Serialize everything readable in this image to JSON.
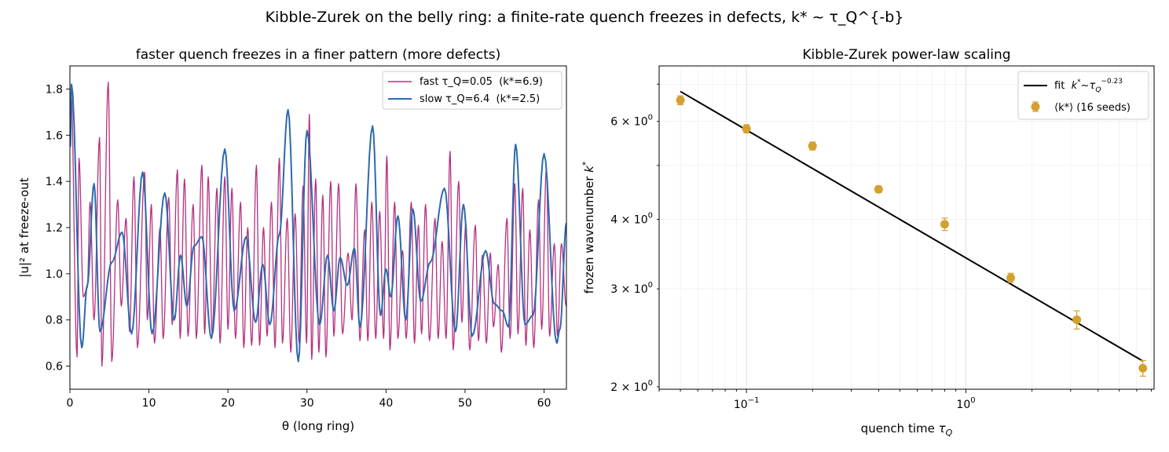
{
  "figure": {
    "suptitle": "Kibble-Zurek on the belly ring: a finite-rate quench freezes in defects, k* ~ τ_Q^{-b}"
  },
  "chart_data": [
    {
      "type": "line",
      "title": "faster quench freezes in a finer pattern (more defects)",
      "xlabel": "θ (long ring)",
      "ylabel": "|u|² at freeze-out",
      "xlim": [
        0,
        62.83
      ],
      "ylim": [
        0.5,
        1.9
      ],
      "xticks": [
        "0",
        "10",
        "20",
        "30",
        "40",
        "50",
        "60"
      ],
      "yticks": [
        "0.6",
        "0.8",
        "1.0",
        "1.2",
        "1.4",
        "1.6",
        "1.8"
      ],
      "legend": "upper right",
      "grid": false,
      "series": [
        {
          "name": "fast τ_Q=0.05  (k*=6.9)",
          "color": "#b5307f",
          "wavenumber": 6.9,
          "peaks": [
            [
              0.15,
              1.78
            ],
            [
              0.9,
              0.64
            ],
            [
              1.15,
              1.5
            ],
            [
              1.7,
              0.9
            ],
            [
              2.2,
              0.94
            ],
            [
              2.55,
              1.31
            ],
            [
              3.05,
              0.8
            ],
            [
              3.75,
              1.59
            ],
            [
              4.05,
              0.6
            ],
            [
              4.85,
              1.83
            ],
            [
              5.3,
              0.62
            ],
            [
              6.05,
              1.32
            ],
            [
              6.5,
              0.86
            ],
            [
              7.1,
              1.24
            ],
            [
              7.55,
              0.75
            ],
            [
              8.1,
              1.42
            ],
            [
              8.55,
              0.68
            ],
            [
              9.45,
              1.44
            ],
            [
              9.8,
              0.8
            ],
            [
              10.3,
              1.3
            ],
            [
              10.7,
              0.7
            ],
            [
              11.4,
              1.2
            ],
            [
              11.8,
              0.72
            ],
            [
              12.5,
              1.33
            ],
            [
              12.95,
              0.78
            ],
            [
              13.6,
              1.45
            ],
            [
              13.95,
              0.72
            ],
            [
              14.5,
              1.41
            ],
            [
              14.95,
              0.73
            ],
            [
              15.6,
              1.3
            ],
            [
              16.0,
              0.72
            ],
            [
              16.7,
              1.47
            ],
            [
              17.05,
              0.74
            ],
            [
              17.5,
              1.42
            ],
            [
              18.0,
              0.74
            ],
            [
              18.6,
              1.37
            ],
            [
              19.0,
              0.7
            ],
            [
              19.6,
              1.42
            ],
            [
              20.0,
              0.76
            ],
            [
              20.5,
              1.37
            ],
            [
              20.95,
              0.72
            ],
            [
              21.6,
              1.31
            ],
            [
              22.0,
              0.68
            ],
            [
              22.5,
              1.2
            ],
            [
              23.0,
              0.69
            ],
            [
              23.6,
              1.47
            ],
            [
              24.0,
              0.69
            ],
            [
              24.5,
              1.2
            ],
            [
              24.95,
              0.73
            ],
            [
              25.5,
              1.31
            ],
            [
              25.95,
              0.68
            ],
            [
              26.5,
              1.5
            ],
            [
              26.9,
              0.7
            ],
            [
              27.5,
              1.24
            ],
            [
              27.95,
              0.66
            ],
            [
              28.5,
              1.26
            ],
            [
              29.0,
              0.7
            ],
            [
              29.5,
              1.38
            ],
            [
              29.95,
              0.7
            ],
            [
              30.3,
              1.69
            ],
            [
              30.6,
              0.63
            ],
            [
              31.1,
              1.41
            ],
            [
              31.5,
              0.66
            ],
            [
              32.0,
              1.34
            ],
            [
              32.4,
              0.64
            ],
            [
              33.0,
              1.4
            ],
            [
              33.4,
              0.73
            ],
            [
              34.0,
              1.39
            ],
            [
              34.5,
              0.74
            ],
            [
              35.2,
              1.09
            ],
            [
              35.7,
              0.8
            ],
            [
              36.2,
              1.39
            ],
            [
              36.7,
              0.71
            ],
            [
              37.3,
              1.19
            ],
            [
              37.7,
              0.71
            ],
            [
              38.2,
              1.31
            ],
            [
              38.7,
              0.72
            ],
            [
              39.2,
              1.27
            ],
            [
              39.7,
              0.72
            ],
            [
              40.1,
              1.51
            ],
            [
              40.5,
              0.67
            ],
            [
              41.1,
              1.31
            ],
            [
              41.5,
              0.72
            ],
            [
              42.1,
              1.1
            ],
            [
              42.55,
              0.72
            ],
            [
              43.2,
              1.31
            ],
            [
              43.6,
              0.7
            ],
            [
              44.1,
              1.21
            ],
            [
              44.5,
              0.74
            ],
            [
              45.0,
              1.3
            ],
            [
              45.5,
              0.71
            ],
            [
              46.2,
              1.24
            ],
            [
              46.6,
              0.72
            ],
            [
              47.1,
              1.14
            ],
            [
              47.6,
              0.72
            ],
            [
              48.1,
              1.53
            ],
            [
              48.5,
              0.67
            ],
            [
              49.2,
              1.4
            ],
            [
              49.6,
              0.79
            ],
            [
              50.1,
              1.22
            ],
            [
              50.6,
              0.67
            ],
            [
              51.3,
              1.21
            ],
            [
              51.7,
              0.71
            ],
            [
              52.2,
              1.08
            ],
            [
              52.7,
              0.7
            ],
            [
              53.2,
              1.09
            ],
            [
              53.6,
              0.77
            ],
            [
              54.2,
              1.04
            ],
            [
              54.6,
              0.66
            ],
            [
              55.3,
              1.24
            ],
            [
              55.7,
              0.72
            ],
            [
              56.3,
              1.39
            ],
            [
              56.7,
              0.74
            ],
            [
              57.3,
              1.37
            ],
            [
              57.7,
              0.69
            ],
            [
              58.2,
              1.19
            ],
            [
              58.7,
              0.68
            ],
            [
              59.3,
              1.32
            ],
            [
              59.7,
              0.76
            ],
            [
              60.3,
              1.46
            ],
            [
              60.7,
              0.73
            ],
            [
              61.3,
              1.13
            ],
            [
              61.7,
              0.73
            ],
            [
              62.2,
              1.13
            ],
            [
              62.8,
              0.86
            ]
          ]
        },
        {
          "name": "slow τ_Q=6.4  (k*=2.5)",
          "color": "#2d6aad",
          "wavenumber": 2.5,
          "peaks": [
            [
              0.05,
              1.55
            ],
            [
              0.2,
              1.82
            ],
            [
              1.5,
              0.68
            ],
            [
              2.2,
              0.95
            ],
            [
              3.05,
              1.39
            ],
            [
              3.8,
              0.75
            ],
            [
              5.3,
              1.05
            ],
            [
              6.6,
              1.18
            ],
            [
              7.8,
              0.74
            ],
            [
              9.2,
              1.44
            ],
            [
              10.4,
              0.74
            ],
            [
              12.0,
              1.35
            ],
            [
              13.2,
              0.8
            ],
            [
              14.0,
              1.08
            ],
            [
              14.8,
              0.86
            ],
            [
              15.7,
              1.12
            ],
            [
              16.7,
              1.16
            ],
            [
              17.9,
              0.72
            ],
            [
              19.6,
              1.54
            ],
            [
              20.8,
              0.84
            ],
            [
              22.3,
              1.16
            ],
            [
              23.5,
              0.79
            ],
            [
              24.4,
              1.04
            ],
            [
              25.3,
              0.78
            ],
            [
              26.5,
              1.17
            ],
            [
              27.6,
              1.71
            ],
            [
              28.9,
              0.62
            ],
            [
              30.0,
              1.62
            ],
            [
              31.6,
              0.78
            ],
            [
              32.6,
              1.08
            ],
            [
              33.4,
              0.84
            ],
            [
              34.2,
              1.07
            ],
            [
              35.1,
              0.95
            ],
            [
              36.0,
              1.11
            ],
            [
              36.7,
              0.77
            ],
            [
              38.3,
              1.64
            ],
            [
              39.3,
              0.82
            ],
            [
              40.0,
              1.02
            ],
            [
              40.6,
              0.9
            ],
            [
              41.5,
              1.25
            ],
            [
              42.5,
              0.8
            ],
            [
              43.4,
              1.28
            ],
            [
              44.4,
              0.88
            ],
            [
              45.6,
              1.05
            ],
            [
              47.4,
              1.37
            ],
            [
              48.8,
              0.75
            ],
            [
              49.8,
              1.3
            ],
            [
              50.9,
              0.73
            ],
            [
              52.6,
              1.1
            ],
            [
              53.7,
              0.87
            ],
            [
              54.7,
              0.84
            ],
            [
              55.5,
              0.77
            ],
            [
              56.4,
              1.56
            ],
            [
              57.6,
              0.78
            ],
            [
              58.6,
              0.82
            ],
            [
              60.0,
              1.52
            ],
            [
              61.6,
              0.7
            ],
            [
              62.0,
              0.76
            ],
            [
              62.83,
              1.22
            ]
          ]
        }
      ]
    },
    {
      "type": "scatter",
      "title": "Kibble-Zurek power-law scaling",
      "xlabel": "quench time  τ_Q",
      "ylabel": "frozen wavenumber  k*",
      "xscale": "log",
      "yscale": "log",
      "xlim": [
        0.04,
        7.2
      ],
      "ylim": [
        1.98,
        7.55
      ],
      "xticks": [
        {
          "value": 0.1,
          "base": "10",
          "exp": "−1"
        },
        {
          "value": 1,
          "base": "10",
          "exp": "0"
        }
      ],
      "yticks": [
        {
          "value": 2,
          "mant": "2",
          "base": "10",
          "exp": "0"
        },
        {
          "value": 3,
          "mant": "3",
          "base": "10",
          "exp": "0"
        },
        {
          "value": 4,
          "mant": "4",
          "base": "10",
          "exp": "0"
        },
        {
          "value": 6,
          "mant": "6",
          "base": "10",
          "exp": "0"
        }
      ],
      "grid": true,
      "legend": "upper right",
      "fit": {
        "label_prefix": "fit  ",
        "label_k": "k",
        "label_tilde": "~",
        "label_tau": "τ",
        "label_sub": "Q",
        "label_exp": "−0.23",
        "color": "#000000",
        "x_range": [
          0.05,
          6.4
        ],
        "prefactor": 3.41,
        "exponent": -0.23
      },
      "points": {
        "name": "⟨k*⟩ (16 seeds)",
        "color": "#d4a030",
        "x": [
          0.05,
          0.1,
          0.2,
          0.4,
          0.8,
          1.6,
          3.2,
          6.4
        ],
        "y": [
          6.55,
          5.82,
          5.42,
          4.53,
          3.92,
          3.14,
          2.64,
          2.16
        ],
        "err": [
          0.12,
          0.1,
          0.09,
          0.06,
          0.1,
          0.06,
          0.1,
          0.07
        ]
      }
    }
  ]
}
